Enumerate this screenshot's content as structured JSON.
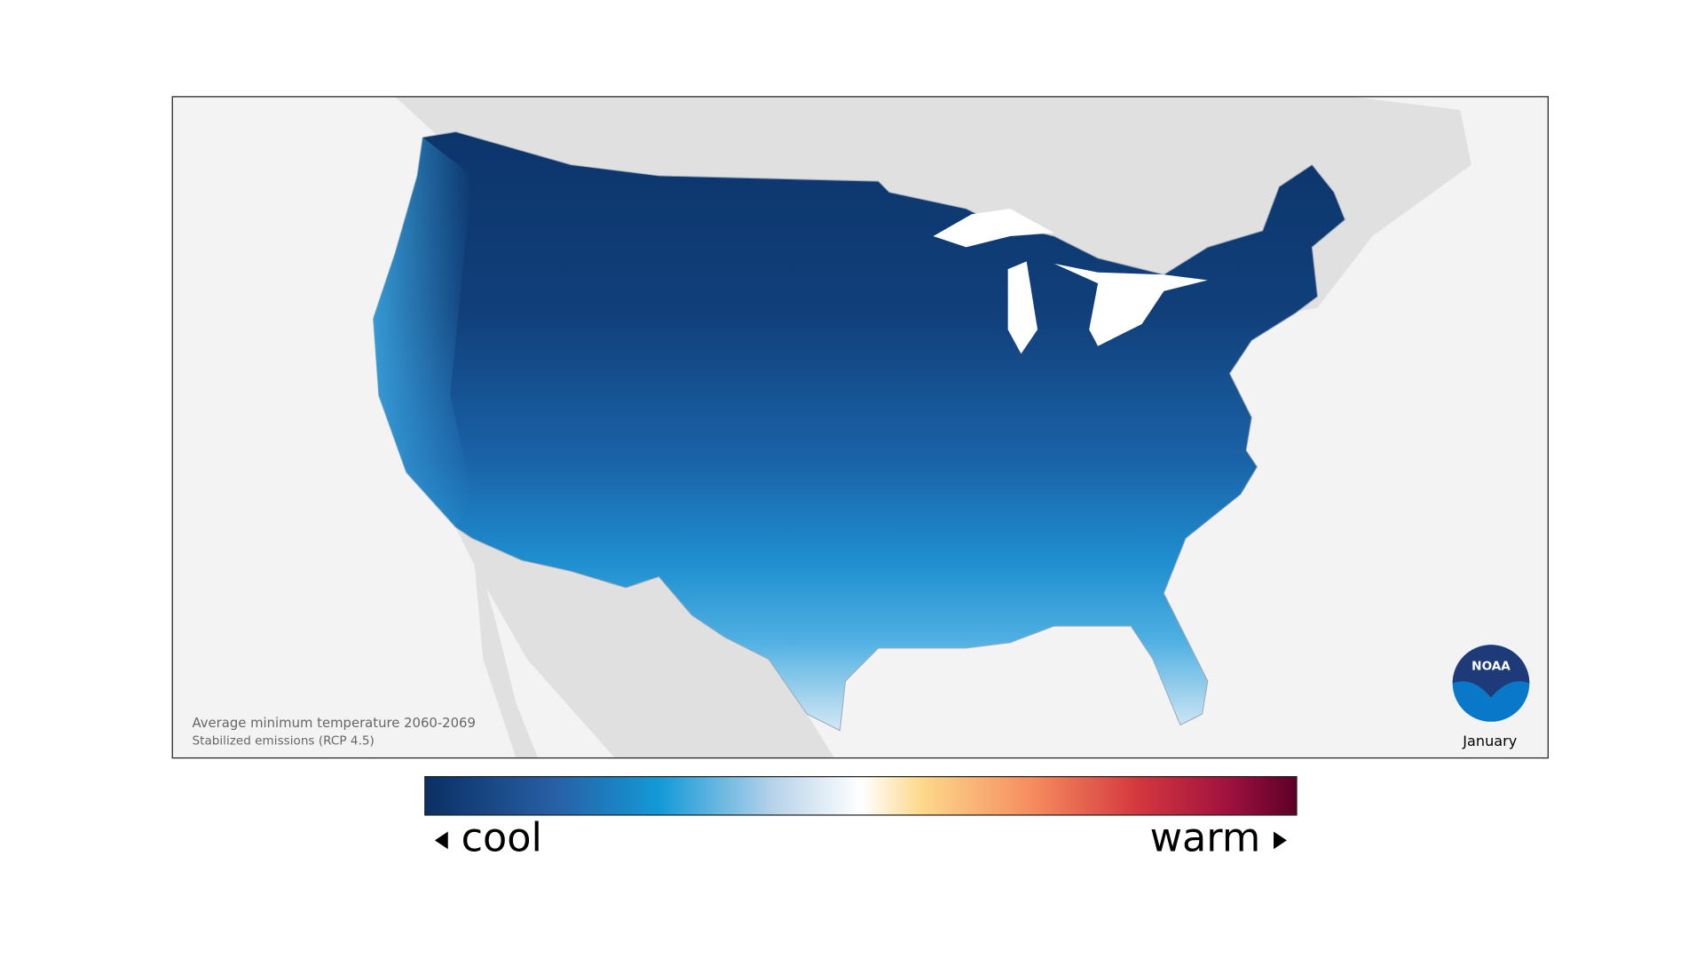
{
  "map": {
    "caption": [
      "Average minimum temperature 2060-2069",
      "Stabilized emissions (RCP 4.5)"
    ],
    "month": "January",
    "logo": "NOAA"
  },
  "legend": {
    "low_label": "cool",
    "high_label": "warm"
  }
}
